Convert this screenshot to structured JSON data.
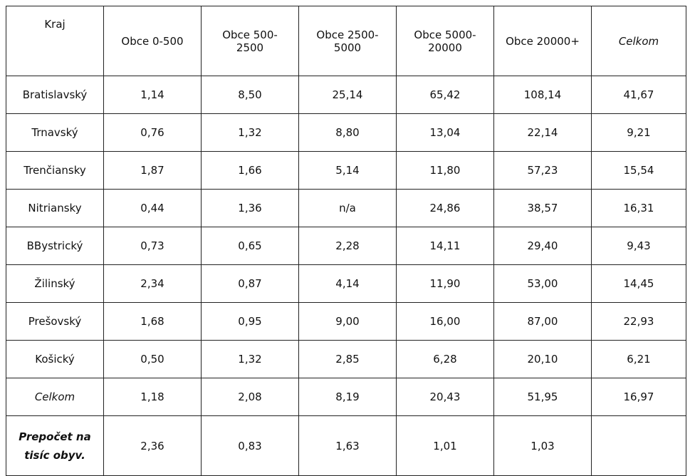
{
  "table": {
    "header": [
      [
        "Kraj"
      ],
      [
        "Obce 0-500"
      ],
      [
        "Obce 500-",
        "2500"
      ],
      [
        "Obce 2500-",
        "5000"
      ],
      [
        "Obce 5000-",
        "20000"
      ],
      [
        "Obce 20000+"
      ],
      [
        "Celkom"
      ]
    ],
    "rows": [
      [
        "Bratislavský",
        "1,14",
        "8,50",
        "25,14",
        "65,42",
        "108,14",
        "41,67"
      ],
      [
        "Trnavský",
        "0,76",
        "1,32",
        "8,80",
        "13,04",
        "22,14",
        "9,21"
      ],
      [
        "Trenčiansky",
        "1,87",
        "1,66",
        "5,14",
        "11,80",
        "57,23",
        "15,54"
      ],
      [
        "Nitriansky",
        "0,44",
        "1,36",
        "n/a",
        "24,86",
        "38,57",
        "16,31"
      ],
      [
        "BBystrický",
        "0,73",
        "0,65",
        "2,28",
        "14,11",
        "29,40",
        "9,43"
      ],
      [
        "Žilinský",
        "2,34",
        "0,87",
        "4,14",
        "11,90",
        "53,00",
        "14,45"
      ],
      [
        "Prešovský",
        "1,68",
        "0,95",
        "9,00",
        "16,00",
        "87,00",
        "22,93"
      ],
      [
        "Košický",
        "0,50",
        "1,32",
        "2,85",
        "6,28",
        "20,10",
        "6,21"
      ],
      [
        "Celkom",
        "1,18",
        "2,08",
        "8,19",
        "20,43",
        "51,95",
        "16,97"
      ],
      [
        "Prepočet na tisíc obyv.",
        "2,36",
        "0,83",
        "1,63",
        "1,01",
        "1,03"
      ]
    ]
  }
}
